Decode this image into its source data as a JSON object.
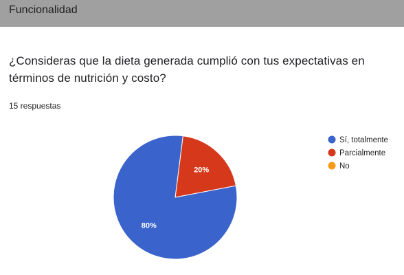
{
  "section": {
    "title": "Funcionalidad"
  },
  "question": {
    "text": "¿Consideras que la dieta generada cumplió con tus expectativas en términos de nutrición y costo?",
    "response_count": "15 respuestas"
  },
  "colors": {
    "header_background": "#a0a0a0",
    "series": [
      "#3a64cc",
      "#d5381a",
      "#f89a18"
    ]
  },
  "chart_data": {
    "type": "pie",
    "title": "",
    "categories": [
      "Sí, totalmente",
      "Parcialmente",
      "No"
    ],
    "values": [
      80,
      20,
      0
    ],
    "labels": [
      "80%",
      "20%",
      ""
    ],
    "legend_position": "right"
  }
}
